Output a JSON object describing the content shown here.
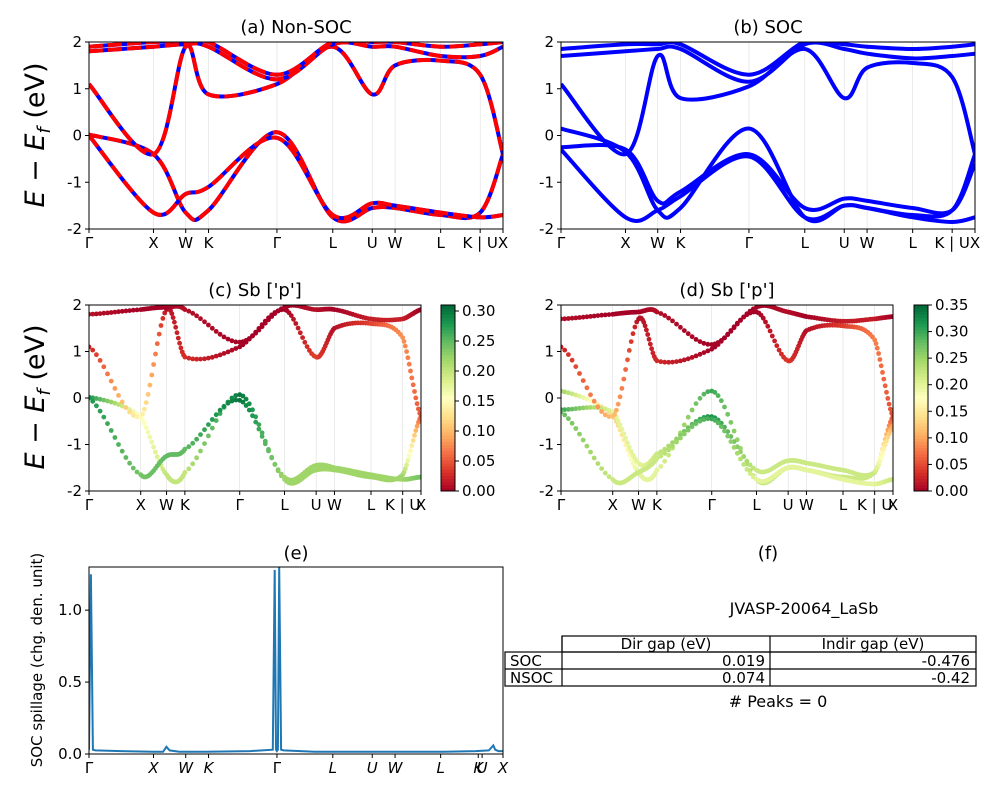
{
  "figure": {
    "panel_a_title": "(a) Non-SOC",
    "panel_b_title": "(b) SOC",
    "panel_c_title": "(c)  Sb ['p']",
    "panel_d_title": "(d) Sb ['p']",
    "panel_e_title": "(e)",
    "panel_f_title": "(f)",
    "energy_ylabel": "E − E",
    "energy_ylabel_sub": "f",
    "energy_ylabel_unit": " (eV)",
    "spillage_ylabel": "SOC spillage (chg. den. unit)",
    "material_id": "JVASP-20064_LaSb",
    "peaks_text": "# Peaks = 0",
    "colors": {
      "bands": "#0000ff",
      "nonsoc_dash": "#ff0000",
      "spillage": "#1f77b4"
    }
  },
  "kpath": {
    "labels": [
      "Γ",
      "X",
      "W",
      "K",
      "Γ",
      "L",
      "U",
      "W",
      "L",
      "K | U",
      "X"
    ],
    "positions": [
      0,
      1.0,
      1.5,
      1.854,
      2.915,
      3.781,
      4.393,
      4.747,
      5.454,
      6.067,
      6.421
    ]
  },
  "gap_table": {
    "columns": [
      "",
      "Dir gap (eV)",
      "Indir gap (eV)"
    ],
    "rows": [
      {
        "label": "SOC",
        "dir": "0.019",
        "indir": "-0.476"
      },
      {
        "label": "NSOC",
        "dir": "0.074",
        "indir": "-0.42"
      }
    ]
  },
  "chart_data": [
    {
      "type": "line",
      "title": "(a) Non-SOC",
      "ylabel": "E − E_f (eV)",
      "ylim": [
        -2,
        2
      ],
      "yticks": [
        -2,
        -1,
        0,
        1,
        2
      ],
      "xtick_labels": [
        "Γ",
        "X",
        "W",
        "K",
        "Γ",
        "L",
        "U",
        "W",
        "L",
        "K | U",
        "X"
      ],
      "note": "bands drawn as blue lines with red dashes",
      "series": [
        {
          "x": [
            0,
            1.0,
            1.5,
            1.854,
            2.915,
            3.781,
            4.393,
            4.747,
            5.454,
            6.067,
            6.421
          ],
          "y": [
            0.02,
            -0.4,
            -1.65,
            -1.6,
            0.07,
            -1.75,
            -1.55,
            -1.55,
            -1.7,
            -1.65,
            -0.4
          ]
        },
        {
          "x": [
            0,
            1.0,
            1.5,
            1.854,
            2.915,
            3.781,
            4.393,
            4.747,
            5.454,
            6.067,
            6.421
          ],
          "y": [
            0.0,
            -1.65,
            -1.25,
            -1.1,
            -0.05,
            -1.7,
            -1.45,
            -1.5,
            -1.65,
            -1.75,
            -1.7
          ]
        },
        {
          "x": [
            0,
            1.0,
            1.5,
            1.854,
            2.915,
            3.781,
            4.393,
            4.747,
            5.454,
            6.067,
            6.421
          ],
          "y": [
            1.1,
            -0.4,
            1.9,
            0.88,
            1.1,
            1.9,
            0.88,
            1.5,
            1.6,
            1.3,
            -0.4
          ]
        },
        {
          "x": [
            0,
            1.0,
            1.5,
            1.854,
            2.915,
            3.781,
            4.393,
            4.747,
            5.454,
            6.067,
            6.421
          ],
          "y": [
            1.8,
            1.9,
            1.95,
            1.9,
            1.2,
            1.95,
            1.9,
            1.9,
            1.7,
            1.7,
            1.9
          ]
        },
        {
          "x": [
            0,
            1.0,
            1.5,
            1.854,
            2.915,
            3.781,
            4.393,
            4.747,
            5.454,
            6.067,
            6.421
          ],
          "y": [
            1.9,
            2.0,
            2.0,
            2.0,
            1.3,
            2.0,
            2.0,
            2.0,
            1.9,
            1.95,
            2.0
          ]
        }
      ]
    },
    {
      "type": "line",
      "title": "(b) SOC",
      "ylim": [
        -2,
        2
      ],
      "yticks": [
        -2,
        -1,
        0,
        1,
        2
      ],
      "xtick_labels": [
        "Γ",
        "X",
        "W",
        "K",
        "Γ",
        "L",
        "U",
        "W",
        "L",
        "K | U",
        "X"
      ],
      "series": [
        {
          "x": [
            0,
            1.0,
            1.5,
            1.854,
            2.915,
            3.781,
            4.393,
            4.747,
            5.454,
            6.067,
            6.421
          ],
          "y": [
            0.15,
            -0.35,
            -1.6,
            -1.55,
            0.15,
            -1.75,
            -1.5,
            -1.55,
            -1.7,
            -1.6,
            -0.4
          ]
        },
        {
          "x": [
            0,
            1.0,
            1.5,
            1.854,
            2.915,
            3.781,
            4.393,
            4.747,
            5.454,
            6.067,
            6.421
          ],
          "y": [
            -0.25,
            -0.3,
            -1.4,
            -1.2,
            -0.4,
            -1.55,
            -1.35,
            -1.4,
            -1.55,
            -1.6,
            -0.6
          ]
        },
        {
          "x": [
            0,
            1.0,
            1.5,
            1.854,
            2.915,
            3.781,
            4.393,
            4.747,
            5.454,
            6.067,
            6.421
          ],
          "y": [
            -0.3,
            -1.75,
            -1.6,
            -1.3,
            -0.45,
            -1.75,
            -1.5,
            -1.55,
            -1.75,
            -1.85,
            -1.75
          ]
        },
        {
          "x": [
            0,
            1.0,
            1.5,
            1.854,
            2.915,
            3.781,
            4.393,
            4.747,
            5.454,
            6.067,
            6.421
          ],
          "y": [
            1.1,
            -0.4,
            1.7,
            0.8,
            1.05,
            1.85,
            0.8,
            1.45,
            1.55,
            1.25,
            -0.4
          ]
        },
        {
          "x": [
            0,
            1.0,
            1.5,
            1.854,
            2.915,
            3.781,
            4.393,
            4.747,
            5.454,
            6.067,
            6.421
          ],
          "y": [
            1.7,
            1.8,
            1.85,
            1.85,
            1.15,
            1.95,
            1.85,
            1.75,
            1.65,
            1.7,
            1.75
          ]
        },
        {
          "x": [
            0,
            1.0,
            1.5,
            1.854,
            2.915,
            3.781,
            4.393,
            4.747,
            5.454,
            6.067,
            6.421
          ],
          "y": [
            1.85,
            1.95,
            1.95,
            1.95,
            1.3,
            2.0,
            1.95,
            1.9,
            1.85,
            1.9,
            1.95
          ]
        }
      ]
    },
    {
      "type": "scatter",
      "title": "(c)  Sb ['p']",
      "ylabel": "E − E_f (eV)",
      "ylim": [
        -2,
        2
      ],
      "yticks": [
        -2,
        -1,
        0,
        1,
        2
      ],
      "xtick_labels": [
        "Γ",
        "X",
        "W",
        "K",
        "Γ",
        "L",
        "U",
        "W",
        "L",
        "K | U",
        "X"
      ],
      "colormap": "RdYlGn",
      "colorbar_range": [
        0.0,
        0.31
      ],
      "colorbar_ticks": [
        "0.00",
        "0.05",
        "0.10",
        "0.15",
        "0.20",
        "0.25",
        "0.30"
      ],
      "series": [
        {
          "x": [
            0,
            1.0,
            1.5,
            1.854,
            2.915,
            3.781,
            4.393,
            4.747,
            5.454,
            6.067,
            6.421
          ],
          "y": [
            0.02,
            -0.4,
            -1.65,
            -1.6,
            0.07,
            -1.75,
            -1.55,
            -1.55,
            -1.7,
            -1.65,
            -0.4
          ],
          "weight": [
            0.28,
            0.15,
            0.2,
            0.2,
            0.3,
            0.22,
            0.22,
            0.22,
            0.22,
            0.22,
            0.05
          ]
        },
        {
          "x": [
            0,
            1.0,
            1.5,
            1.854,
            2.915,
            3.781,
            4.393,
            4.747,
            5.454,
            6.067,
            6.421
          ],
          "y": [
            0.0,
            -1.65,
            -1.25,
            -1.1,
            -0.05,
            -1.7,
            -1.45,
            -1.5,
            -1.65,
            -1.75,
            -1.7
          ],
          "weight": [
            0.28,
            0.24,
            0.25,
            0.25,
            0.3,
            0.22,
            0.22,
            0.22,
            0.22,
            0.22,
            0.24
          ]
        },
        {
          "x": [
            0,
            1.0,
            1.5,
            1.854,
            2.915,
            3.781,
            4.393,
            4.747,
            5.454,
            6.067,
            6.421
          ],
          "y": [
            1.1,
            -0.4,
            1.9,
            0.88,
            1.1,
            1.9,
            0.88,
            1.5,
            1.6,
            1.3,
            -0.4
          ],
          "weight": [
            0.02,
            0.15,
            0.01,
            0.03,
            0.0,
            0.0,
            0.04,
            0.01,
            0.04,
            0.08,
            0.05
          ]
        },
        {
          "x": [
            0,
            1.0,
            1.5,
            1.854,
            2.915,
            3.781,
            4.393,
            4.747,
            5.454,
            6.067,
            6.421
          ],
          "y": [
            1.8,
            1.9,
            1.95,
            1.9,
            1.2,
            1.95,
            1.9,
            1.9,
            1.7,
            1.7,
            1.9
          ],
          "weight": [
            0.01,
            0.0,
            0.0,
            0.01,
            0.0,
            0.0,
            0.01,
            0.0,
            0.02,
            0.02,
            0.0
          ]
        }
      ]
    },
    {
      "type": "scatter",
      "title": "(d) Sb ['p']",
      "ylim": [
        -2,
        2
      ],
      "yticks": [
        -2,
        -1,
        0,
        1,
        2
      ],
      "xtick_labels": [
        "Γ",
        "X",
        "W",
        "K",
        "Γ",
        "L",
        "U",
        "W",
        "L",
        "K | U",
        "X"
      ],
      "colormap": "RdYlGn",
      "colorbar_range": [
        0.0,
        0.35
      ],
      "colorbar_ticks": [
        "0.00",
        "0.05",
        "0.10",
        "0.15",
        "0.20",
        "0.25",
        "0.30",
        "0.35"
      ],
      "series": [
        {
          "x": [
            0,
            1.0,
            1.5,
            1.854,
            2.915,
            3.781,
            4.393,
            4.747,
            5.454,
            6.067,
            6.421
          ],
          "y": [
            0.15,
            -0.35,
            -1.6,
            -1.55,
            0.15,
            -1.75,
            -1.5,
            -1.55,
            -1.7,
            -1.6,
            -0.4
          ],
          "weight": [
            0.25,
            0.12,
            0.2,
            0.2,
            0.3,
            0.22,
            0.22,
            0.22,
            0.22,
            0.22,
            0.05
          ]
        },
        {
          "x": [
            0,
            1.0,
            1.5,
            1.854,
            2.915,
            3.781,
            4.393,
            4.747,
            5.454,
            6.067,
            6.421
          ],
          "y": [
            -0.25,
            -0.3,
            -1.4,
            -1.2,
            -0.4,
            -1.55,
            -1.35,
            -1.4,
            -1.55,
            -1.6,
            -0.6
          ],
          "weight": [
            0.3,
            0.2,
            0.2,
            0.22,
            0.32,
            0.22,
            0.22,
            0.22,
            0.22,
            0.22,
            0.1
          ]
        },
        {
          "x": [
            0,
            1.0,
            1.5,
            1.854,
            2.915,
            3.781,
            4.393,
            4.747,
            5.454,
            6.067,
            6.421
          ],
          "y": [
            -0.3,
            -1.75,
            -1.6,
            -1.3,
            -0.45,
            -1.75,
            -1.5,
            -1.55,
            -1.75,
            -1.85,
            -1.75
          ],
          "weight": [
            0.28,
            0.22,
            0.22,
            0.22,
            0.3,
            0.2,
            0.2,
            0.2,
            0.2,
            0.2,
            0.22
          ]
        },
        {
          "x": [
            0,
            1.0,
            1.5,
            1.854,
            2.915,
            3.781,
            4.393,
            4.747,
            5.454,
            6.067,
            6.421
          ],
          "y": [
            1.1,
            -0.4,
            1.7,
            0.8,
            1.05,
            1.85,
            0.8,
            1.45,
            1.55,
            1.25,
            -0.4
          ],
          "weight": [
            0.02,
            0.12,
            0.01,
            0.03,
            0.0,
            0.0,
            0.04,
            0.01,
            0.04,
            0.08,
            0.05
          ]
        },
        {
          "x": [
            0,
            1.0,
            1.5,
            1.854,
            2.915,
            3.781,
            4.393,
            4.747,
            5.454,
            6.067,
            6.421
          ],
          "y": [
            1.7,
            1.8,
            1.85,
            1.85,
            1.15,
            1.95,
            1.85,
            1.75,
            1.65,
            1.7,
            1.75
          ],
          "weight": [
            0.01,
            0.0,
            0.0,
            0.01,
            0.0,
            0.0,
            0.01,
            0.0,
            0.02,
            0.02,
            0.0
          ]
        }
      ]
    },
    {
      "type": "line",
      "title": "(e)",
      "ylabel": "SOC spillage (chg. den. unit)",
      "ylim": [
        0,
        1.3
      ],
      "yticks": [
        "0.0",
        "0.5",
        "1.0"
      ],
      "xtick_labels": [
        "Γ",
        "X",
        "W",
        "K",
        "Γ",
        "L",
        "U",
        "W",
        "L",
        "K",
        "U",
        "X"
      ],
      "xtick_positions": [
        0,
        1.0,
        1.5,
        1.854,
        2.915,
        3.781,
        4.393,
        4.747,
        5.454,
        6.037,
        6.097,
        6.421
      ],
      "series": [
        {
          "x": [
            0,
            0.03,
            0.06,
            0.1,
            0.5,
            1.0,
            1.15,
            1.2,
            1.25,
            1.4,
            1.8,
            2.5,
            2.85,
            2.88,
            2.9,
            2.915,
            2.93,
            2.95,
            2.98,
            3.02,
            3.5,
            4.5,
            5.5,
            6.0,
            6.2,
            6.27,
            6.3,
            6.35,
            6.421
          ],
          "y": [
            0.03,
            1.25,
            0.03,
            0.025,
            0.02,
            0.015,
            0.015,
            0.05,
            0.025,
            0.015,
            0.015,
            0.02,
            0.03,
            1.28,
            0.03,
            0.02,
            0.03,
            1.3,
            0.03,
            0.025,
            0.015,
            0.015,
            0.015,
            0.02,
            0.025,
            0.06,
            0.03,
            0.02,
            0.02
          ]
        }
      ]
    }
  ]
}
